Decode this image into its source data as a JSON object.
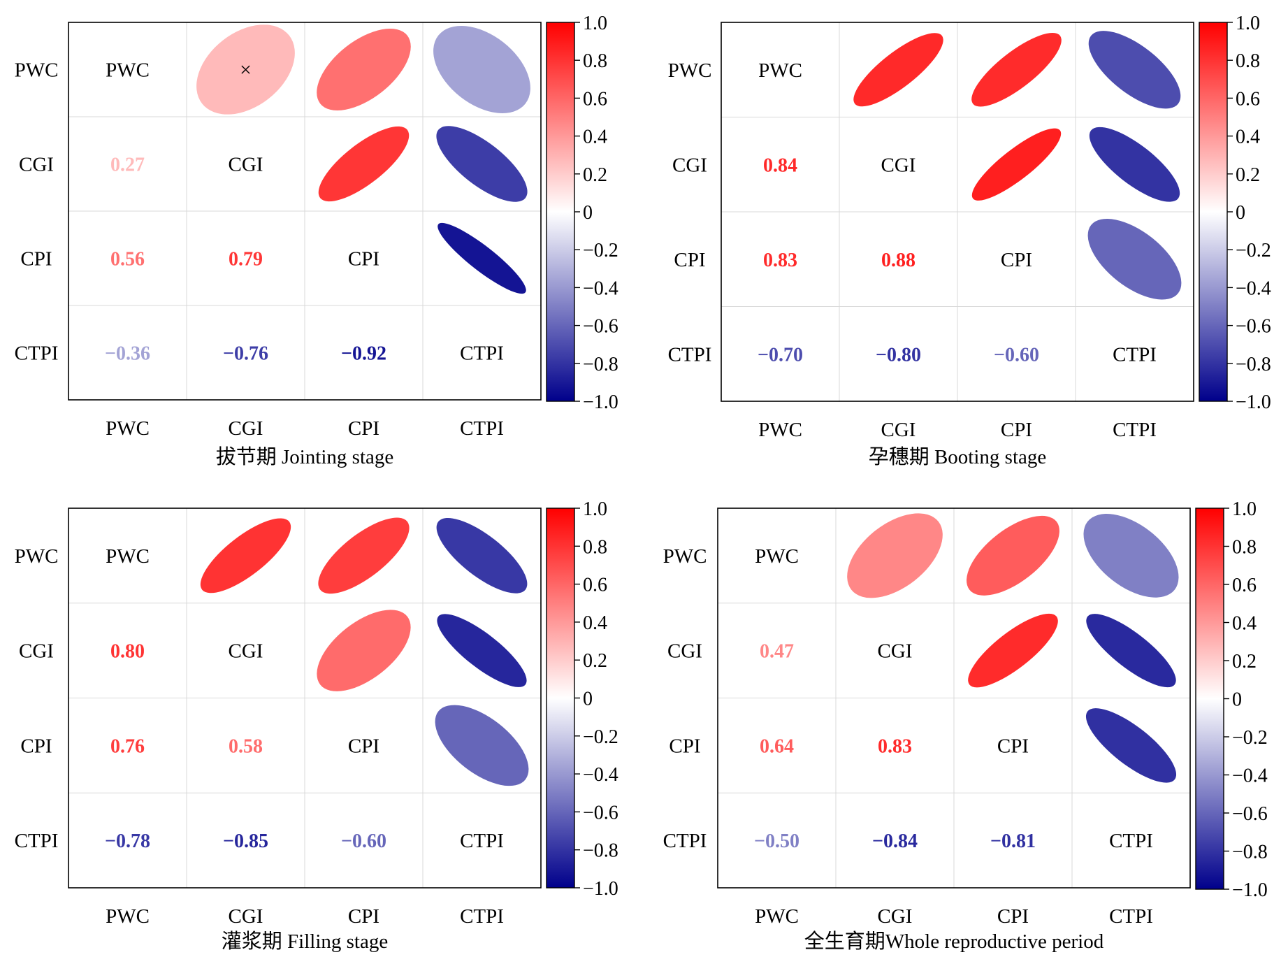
{
  "colors": {
    "positive": "#ff0000",
    "zero": "#ffffff",
    "negative": "#00008b",
    "frame": "#000000",
    "grid": "#d9d9d9"
  },
  "chart_data": [
    {
      "type": "heatmap",
      "subtype": "correlation-matrix-ellipses",
      "title": "拔节期 Jointing stage",
      "variables": [
        "PWC",
        "CGI",
        "CPI",
        "CTPI"
      ],
      "row_labels": [
        "PWC",
        "CGI",
        "CPI",
        "CTPI"
      ],
      "col_labels": [
        "PWC",
        "CGI",
        "CPI",
        "CTPI"
      ],
      "matrix": [
        [
          1,
          0.27,
          0.56,
          -0.36
        ],
        [
          0.27,
          1,
          0.79,
          -0.76
        ],
        [
          0.56,
          0.79,
          1,
          -0.92
        ],
        [
          -0.36,
          -0.76,
          -0.92,
          1
        ]
      ],
      "lower_labels": [
        {
          "row": 1,
          "col": 0,
          "text": "0.27"
        },
        {
          "row": 2,
          "col": 0,
          "text": "0.56"
        },
        {
          "row": 2,
          "col": 1,
          "text": "0.79"
        },
        {
          "row": 3,
          "col": 0,
          "text": "-0.36"
        },
        {
          "row": 3,
          "col": 1,
          "text": "-0.76"
        },
        {
          "row": 3,
          "col": 2,
          "text": "-0.92"
        }
      ],
      "nonsignificant_marks": [
        {
          "row": 0,
          "col": 1,
          "mark": "×"
        }
      ],
      "colorbar": {
        "range": [
          -1,
          1
        ],
        "ticks": [
          "1.0",
          "0.8",
          "0.6",
          "0.4",
          "0.2",
          "0",
          "-0.2",
          "-0.4",
          "-0.6",
          "-0.8",
          "-1.0"
        ]
      }
    },
    {
      "type": "heatmap",
      "subtype": "correlation-matrix-ellipses",
      "title": "孕穗期 Booting stage",
      "variables": [
        "PWC",
        "CGI",
        "CPI",
        "CTPI"
      ],
      "row_labels": [
        "PWC",
        "CGI",
        "CPI",
        "CTPI"
      ],
      "col_labels": [
        "PWC",
        "CGI",
        "CPI",
        "CTPI"
      ],
      "matrix": [
        [
          1,
          0.84,
          0.83,
          -0.7
        ],
        [
          0.84,
          1,
          0.88,
          -0.8
        ],
        [
          0.83,
          0.88,
          1,
          -0.6
        ],
        [
          -0.7,
          -0.8,
          -0.6,
          1
        ]
      ],
      "lower_labels": [
        {
          "row": 1,
          "col": 0,
          "text": "0.84"
        },
        {
          "row": 2,
          "col": 0,
          "text": "0.83"
        },
        {
          "row": 2,
          "col": 1,
          "text": "0.88"
        },
        {
          "row": 3,
          "col": 0,
          "text": "-0.70"
        },
        {
          "row": 3,
          "col": 1,
          "text": "-0.80"
        },
        {
          "row": 3,
          "col": 2,
          "text": "-0.60"
        }
      ],
      "nonsignificant_marks": [],
      "colorbar": {
        "range": [
          -1,
          1
        ],
        "ticks": [
          "1.0",
          "0.8",
          "0.6",
          "0.4",
          "0.2",
          "0",
          "-0.2",
          "-0.4",
          "-0.6",
          "-0.8",
          "-1.0"
        ]
      }
    },
    {
      "type": "heatmap",
      "subtype": "correlation-matrix-ellipses",
      "title": "灌浆期 Filling stage",
      "variables": [
        "PWC",
        "CGI",
        "CPI",
        "CTPI"
      ],
      "row_labels": [
        "PWC",
        "CGI",
        "CPI",
        "CTPI"
      ],
      "col_labels": [
        "PWC",
        "CGI",
        "CPI",
        "CTPI"
      ],
      "matrix": [
        [
          1,
          0.8,
          0.76,
          -0.78
        ],
        [
          0.8,
          1,
          0.58,
          -0.85
        ],
        [
          0.76,
          0.58,
          1,
          -0.6
        ],
        [
          -0.78,
          -0.85,
          -0.6,
          1
        ]
      ],
      "lower_labels": [
        {
          "row": 1,
          "col": 0,
          "text": "0.80"
        },
        {
          "row": 2,
          "col": 0,
          "text": "0.76"
        },
        {
          "row": 2,
          "col": 1,
          "text": "0.58"
        },
        {
          "row": 3,
          "col": 0,
          "text": "-0.78"
        },
        {
          "row": 3,
          "col": 1,
          "text": "-0.85"
        },
        {
          "row": 3,
          "col": 2,
          "text": "-0.60"
        }
      ],
      "nonsignificant_marks": [],
      "colorbar": {
        "range": [
          -1,
          1
        ],
        "ticks": [
          "1.0",
          "0.8",
          "0.6",
          "0.4",
          "0.2",
          "0",
          "-0.2",
          "-0.4",
          "-0.6",
          "-0.8",
          "-1.0"
        ]
      }
    },
    {
      "type": "heatmap",
      "subtype": "correlation-matrix-ellipses",
      "title": "全生育期Whole reproductive period",
      "variables": [
        "PWC",
        "CGI",
        "CPI",
        "CTPI"
      ],
      "row_labels": [
        "PWC",
        "CGI",
        "CPI",
        "CTPI"
      ],
      "col_labels": [
        "PWC",
        "CGI",
        "CPI",
        "CTPI"
      ],
      "matrix": [
        [
          1,
          0.47,
          0.64,
          -0.5
        ],
        [
          0.47,
          1,
          0.83,
          -0.84
        ],
        [
          0.64,
          0.83,
          1,
          -0.81
        ],
        [
          -0.5,
          -0.84,
          -0.81,
          1
        ]
      ],
      "lower_labels": [
        {
          "row": 1,
          "col": 0,
          "text": "0.47"
        },
        {
          "row": 2,
          "col": 0,
          "text": "0.64"
        },
        {
          "row": 2,
          "col": 1,
          "text": "0.83"
        },
        {
          "row": 3,
          "col": 0,
          "text": "-0.50"
        },
        {
          "row": 3,
          "col": 1,
          "text": "-0.84"
        },
        {
          "row": 3,
          "col": 2,
          "text": "-0.81"
        }
      ],
      "nonsignificant_marks": [],
      "colorbar": {
        "range": [
          -1,
          1
        ],
        "ticks": [
          "1.0",
          "0.8",
          "0.6",
          "0.4",
          "0.2",
          "0",
          "-0.2",
          "-0.4",
          "-0.6",
          "-0.8",
          "-1.0"
        ]
      }
    }
  ]
}
